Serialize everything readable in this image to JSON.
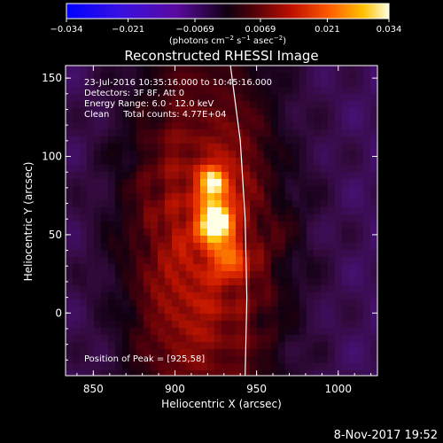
{
  "chart_data": {
    "type": "heatmap",
    "title": "Reconstructed RHESSI Image",
    "xlabel": "Heliocentric X (arcsec)",
    "ylabel": "Heliocentric Y (arcsec)",
    "xlim": [
      833,
      1024
    ],
    "ylim": [
      -40,
      158
    ],
    "x_ticks": [
      850,
      900,
      950,
      1000
    ],
    "y_ticks": [
      0,
      50,
      100,
      150
    ],
    "colorbar": {
      "range": [
        -0.034,
        0.034
      ],
      "ticks": [
        -0.034,
        -0.021,
        -0.0069,
        0.0069,
        0.021,
        0.034
      ],
      "tick_labels": [
        "−0.034",
        "−0.021",
        "−0.0069",
        "0.0069",
        "0.021",
        "0.034"
      ],
      "units_prefix": "(photons cm",
      "units_exp1": "−2",
      "units_mid": " s",
      "units_exp2": "−1",
      "units_mid2": " asec",
      "units_exp3": "−2",
      "units_suffix": ")"
    },
    "sources": [
      {
        "x": 925,
        "y": 58,
        "amplitude": 0.034
      },
      {
        "x": 923,
        "y": 83,
        "amplitude": 0.027
      },
      {
        "x": 933,
        "y": 35,
        "amplitude": 0.017
      }
    ],
    "limb_curve": [
      [
        934,
        158
      ],
      [
        940,
        110
      ],
      [
        943,
        60
      ],
      [
        944,
        10
      ],
      [
        943,
        -40
      ]
    ],
    "info_lines": [
      "23-Jul-2016 10:35:16.000 to 10:45:16.000",
      "Detectors: 3F 8F, Att 0",
      "Energy Range: 6.0 - 12.0 keV",
      "Clean     Total counts: 4.77E+04"
    ],
    "peak_label": "Position of Peak = [925,58]",
    "footer_date": "8-Nov-2017 19:52"
  }
}
